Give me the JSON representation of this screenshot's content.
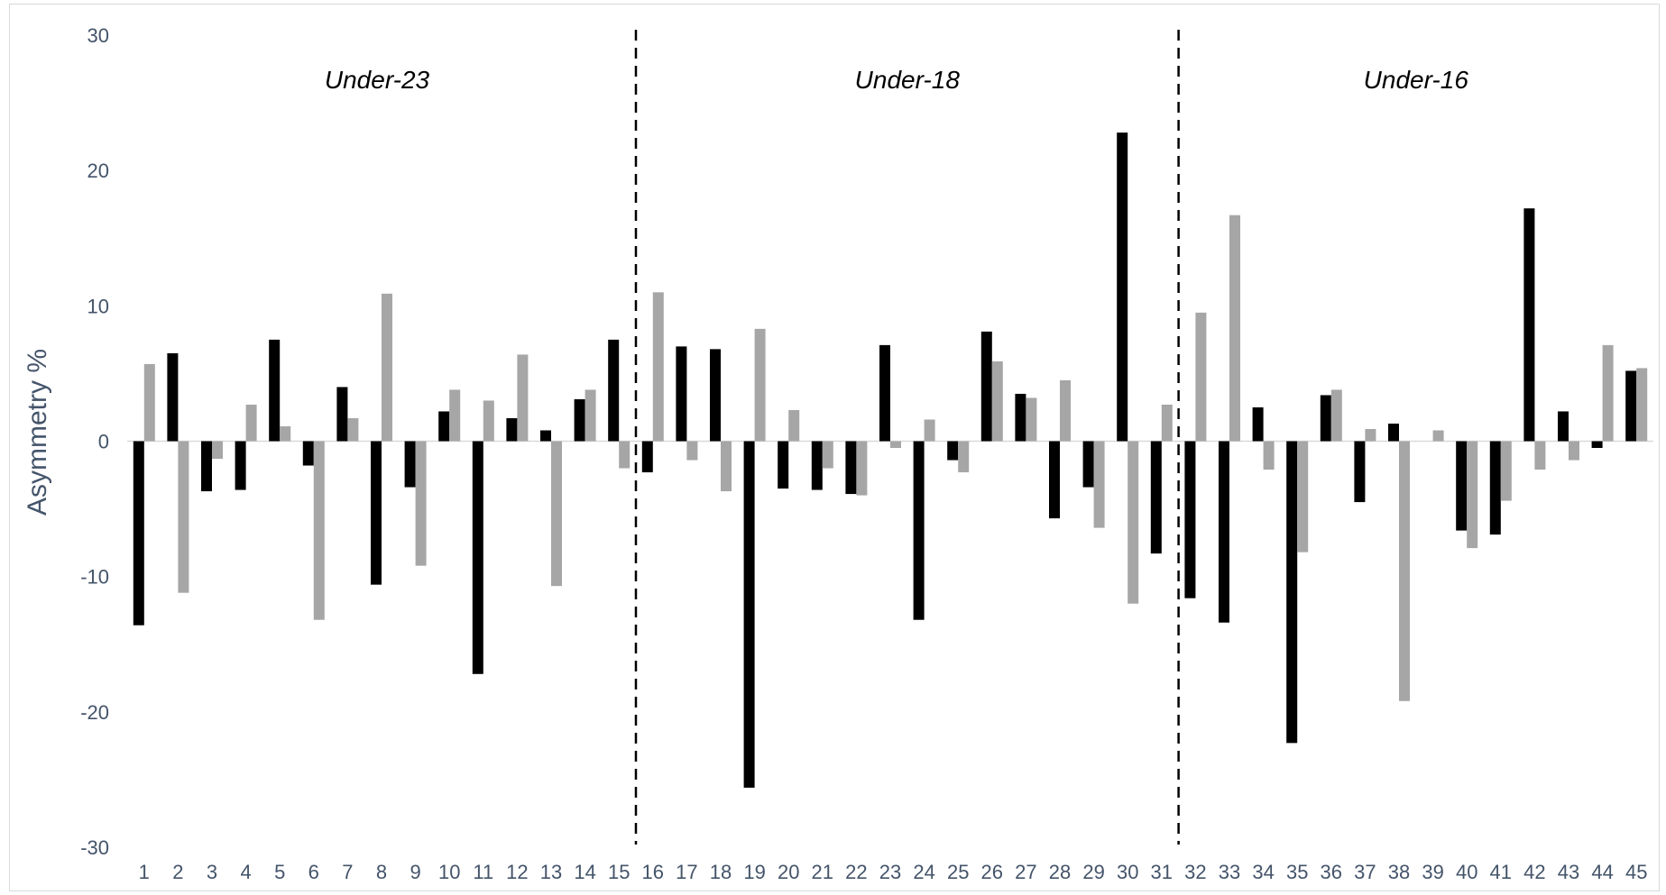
{
  "chart_data": {
    "type": "bar",
    "ylabel": "Asymmetry %",
    "ylim": [
      -30,
      30
    ],
    "y_ticks": [
      30,
      20,
      10,
      0,
      -10,
      -20,
      -30
    ],
    "grid": false,
    "categories": [
      "1",
      "2",
      "3",
      "4",
      "5",
      "6",
      "7",
      "8",
      "9",
      "10",
      "11",
      "12",
      "13",
      "14",
      "15",
      "16",
      "17",
      "18",
      "19",
      "20",
      "21",
      "22",
      "23",
      "24",
      "25",
      "26",
      "27",
      "28",
      "29",
      "30",
      "31",
      "32",
      "33",
      "34",
      "35",
      "36",
      "37",
      "38",
      "39",
      "40",
      "41",
      "42",
      "43",
      "44",
      "45"
    ],
    "series": [
      {
        "color": "#000000",
        "values": [
          -13.6,
          6.5,
          -3.7,
          -3.6,
          7.5,
          -1.8,
          4.0,
          -10.6,
          -3.4,
          2.2,
          -17.2,
          1.7,
          0.8,
          3.1,
          7.5,
          -2.3,
          7.0,
          6.8,
          -25.6,
          -3.5,
          -3.6,
          -3.9,
          7.1,
          -13.2,
          -1.4,
          8.1,
          3.5,
          -5.7,
          -3.4,
          22.8,
          -8.3,
          -11.6,
          -13.4,
          2.5,
          -22.3,
          3.4,
          -4.5,
          1.3,
          0.0,
          -6.6,
          -6.9,
          17.2,
          2.2,
          -0.5,
          5.2
        ]
      },
      {
        "color": "#a6a6a6",
        "values": [
          5.7,
          -11.2,
          -1.3,
          2.7,
          1.1,
          -13.2,
          1.7,
          10.9,
          -9.2,
          3.8,
          3.0,
          6.4,
          -10.7,
          3.8,
          -2.0,
          11.0,
          -1.4,
          -3.7,
          8.3,
          2.3,
          -2.0,
          -4.0,
          -0.5,
          1.6,
          -2.3,
          5.9,
          3.2,
          4.5,
          -6.4,
          -12.0,
          2.7,
          9.5,
          16.7,
          -2.1,
          -8.2,
          3.8,
          0.9,
          -19.2,
          0.8,
          -7.9,
          -4.4,
          -2.1,
          -1.4,
          7.1,
          5.4
        ]
      }
    ],
    "group_labels": [
      "Under-23",
      "Under-18",
      "Under-16"
    ],
    "group_dividers_after": [
      15,
      31
    ]
  }
}
